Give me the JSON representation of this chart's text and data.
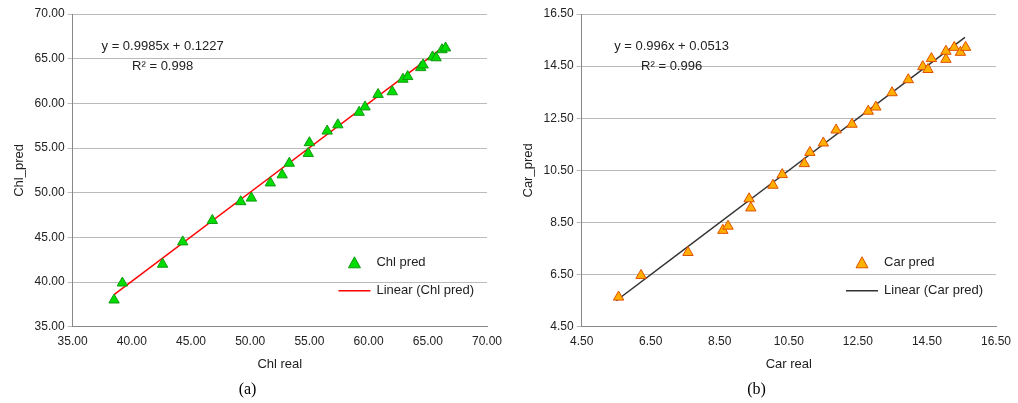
{
  "chart_data": [
    {
      "type": "scatter",
      "title": "(a)",
      "xlabel": "Chl real",
      "ylabel": "Chl_pred",
      "annotations": [
        "y = 0.9985x + 0.1227",
        "R² = 0.998"
      ],
      "xlim": [
        35,
        70
      ],
      "ylim": [
        35,
        70
      ],
      "xticks": [
        {
          "value": 35,
          "label": "35.00"
        },
        {
          "value": 40,
          "label": "40.00"
        },
        {
          "value": 45,
          "label": "45.00"
        },
        {
          "value": 50,
          "label": "50.00"
        },
        {
          "value": 55,
          "label": "55.00"
        },
        {
          "value": 60,
          "label": "60.00"
        },
        {
          "value": 65,
          "label": "65.00"
        },
        {
          "value": 70,
          "label": "70.00"
        }
      ],
      "yticks": [
        {
          "value": 35,
          "label": "35.00"
        },
        {
          "value": 40,
          "label": "40.00"
        },
        {
          "value": 45,
          "label": "45.00"
        },
        {
          "value": 50,
          "label": "50.00"
        },
        {
          "value": 55,
          "label": "55.00"
        },
        {
          "value": 60,
          "label": "60.00"
        },
        {
          "value": 65,
          "label": "65.00"
        },
        {
          "value": 70,
          "label": "70.00"
        }
      ],
      "grid": "y",
      "legend": "bottom right",
      "marker": "triangle",
      "series": [
        {
          "name": "Chl pred",
          "color": "#00dd00",
          "x": [
            38.5,
            39.2,
            42.6,
            44.3,
            46.8,
            49.2,
            50.1,
            51.7,
            52.7,
            53.3,
            54.9,
            55.0,
            56.5,
            57.4,
            59.2,
            59.7,
            60.8,
            62.0,
            62.9,
            63.3,
            64.4,
            64.6,
            65.4,
            65.7,
            66.2,
            66.5
          ],
          "values": [
            38.0,
            39.9,
            42.0,
            44.5,
            46.9,
            49.0,
            49.4,
            51.1,
            52.0,
            53.3,
            54.4,
            55.6,
            56.9,
            57.6,
            59.0,
            59.6,
            61.0,
            61.3,
            62.7,
            63.0,
            64.0,
            64.3,
            65.2,
            65.1,
            66.0,
            66.2
          ]
        },
        {
          "name": "Linear (Chl pred)",
          "type": "line",
          "color": "#ff0000",
          "marker": "none",
          "x": [
            38.5,
            66.5
          ],
          "values": [
            38.6,
            66.5
          ]
        }
      ]
    },
    {
      "type": "scatter",
      "title": "(b)",
      "xlabel": "Car real",
      "ylabel": "Car_pred",
      "annotations": [
        "y = 0.996x + 0.0513",
        "R² = 0.996"
      ],
      "xlim": [
        4.5,
        16.5
      ],
      "ylim": [
        4.5,
        16.5
      ],
      "xticks": [
        {
          "value": 4.5,
          "label": "4.50"
        },
        {
          "value": 6.5,
          "label": "6.50"
        },
        {
          "value": 8.5,
          "label": "8.50"
        },
        {
          "value": 10.5,
          "label": "10.50"
        },
        {
          "value": 12.5,
          "label": "12.50"
        },
        {
          "value": 14.5,
          "label": "14.50"
        },
        {
          "value": 16.5,
          "label": "16.50"
        }
      ],
      "yticks": [
        {
          "value": 4.5,
          "label": "4.50"
        },
        {
          "value": 6.5,
          "label": "6.50"
        },
        {
          "value": 8.5,
          "label": "8.50"
        },
        {
          "value": 10.5,
          "label": "10.50"
        },
        {
          "value": 12.5,
          "label": "12.50"
        },
        {
          "value": 14.5,
          "label": "14.50"
        },
        {
          "value": 16.5,
          "label": "16.50"
        }
      ],
      "grid": "y",
      "legend": "bottom right",
      "marker": "triangle",
      "series": [
        {
          "name": "Car pred",
          "color": "#ffb000",
          "x": [
            5.57,
            6.22,
            7.58,
            8.59,
            8.74,
            9.35,
            9.4,
            10.04,
            10.31,
            10.95,
            11.11,
            11.5,
            11.87,
            12.33,
            12.8,
            13.02,
            13.49,
            13.96,
            14.38,
            14.53,
            14.63,
            15.05,
            15.05,
            15.29,
            15.47,
            15.62
          ],
          "values": [
            5.64,
            6.47,
            7.35,
            8.2,
            8.36,
            9.41,
            9.06,
            9.93,
            10.34,
            10.76,
            11.19,
            11.55,
            12.05,
            12.27,
            12.77,
            12.93,
            13.48,
            13.98,
            14.48,
            14.37,
            14.79,
            14.76,
            15.07,
            15.22,
            15.03,
            15.22
          ]
        },
        {
          "name": "Linear (Car pred)",
          "type": "line",
          "color": "#333333",
          "marker": "none",
          "x": [
            5.5,
            15.6
          ],
          "values": [
            5.5,
            15.6
          ]
        }
      ]
    }
  ]
}
